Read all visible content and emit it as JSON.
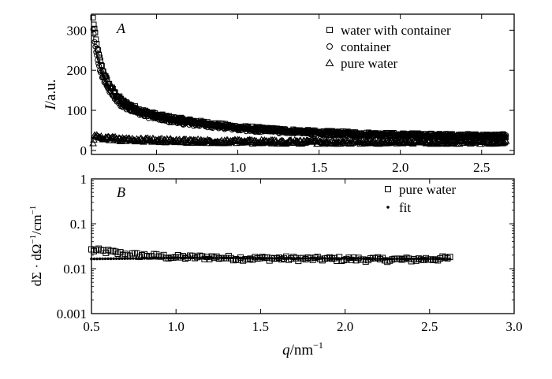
{
  "chart_data": [
    {
      "panel_label": "A",
      "type": "scatter",
      "ylabel_var": "I",
      "ylabel_unit": "/a.u.",
      "xlim": [
        0.1,
        2.7
      ],
      "ylim": [
        -10,
        340
      ],
      "x_ticks": [
        "0.5",
        "1.0",
        "1.5",
        "2.0",
        "2.5"
      ],
      "x_tick_values": [
        0.5,
        1.0,
        1.5,
        2.0,
        2.5
      ],
      "y_ticks": [
        "0",
        "100",
        "200",
        "300"
      ],
      "y_tick_values": [
        0,
        100,
        200,
        300
      ],
      "legend_position": "top-right",
      "series": [
        {
          "name": "water with container",
          "marker": "square",
          "x": [
            0.11,
            0.12,
            0.13,
            0.15,
            0.17,
            0.2,
            0.25,
            0.3,
            0.4,
            0.5,
            0.6,
            0.8,
            1.0,
            1.2,
            1.5,
            1.8,
            2.0,
            2.3,
            2.6,
            2.65
          ],
          "y": [
            330,
            300,
            270,
            230,
            200,
            170,
            140,
            120,
            100,
            88,
            80,
            68,
            58,
            52,
            45,
            41,
            39,
            37,
            36,
            36
          ]
        },
        {
          "name": "container",
          "marker": "circle",
          "x": [
            0.11,
            0.12,
            0.13,
            0.15,
            0.17,
            0.2,
            0.25,
            0.3,
            0.4,
            0.5,
            0.6,
            0.8,
            1.0,
            1.2,
            1.5,
            1.8,
            2.0,
            2.3,
            2.6,
            2.65
          ],
          "y": [
            300,
            270,
            240,
            205,
            180,
            155,
            125,
            108,
            90,
            80,
            72,
            62,
            54,
            48,
            43,
            39,
            37,
            35,
            34,
            34
          ]
        },
        {
          "name": "pure water",
          "marker": "triangle",
          "x": [
            0.11,
            0.12,
            0.13,
            0.15,
            0.2,
            0.3,
            0.5,
            0.7,
            1.0,
            1.3,
            1.6,
            2.0,
            2.3,
            2.6,
            2.65
          ],
          "y": [
            15,
            40,
            35,
            33,
            30,
            27,
            25,
            23,
            22,
            21,
            21,
            21,
            21,
            21,
            21
          ]
        }
      ]
    },
    {
      "panel_label": "B",
      "type": "scatter",
      "ylabel_main": "dΣ · dΩ",
      "ylabel_mid": "/cm",
      "ylabel_exp": "−1",
      "xlabel_var": "q",
      "xlabel_unit": "/nm",
      "xlabel_exp": "−1",
      "y_scale": "log",
      "xlim": [
        0.5,
        3.0
      ],
      "ylim": [
        0.001,
        1
      ],
      "x_ticks": [
        "0.5",
        "1.0",
        "1.5",
        "2.0",
        "2.5",
        "3.0"
      ],
      "x_tick_values": [
        0.5,
        1.0,
        1.5,
        2.0,
        2.5,
        3.0
      ],
      "y_ticks": [
        "0.001",
        "0.01",
        "0.1",
        "1"
      ],
      "y_tick_values": [
        0.001,
        0.01,
        0.1,
        1
      ],
      "legend_position": "top-right",
      "series": [
        {
          "name": "pure water",
          "marker": "square",
          "x": [
            0.5,
            0.55,
            0.6,
            0.7,
            0.8,
            0.9,
            1.0,
            1.2,
            1.4,
            1.6,
            1.8,
            2.0,
            2.2,
            2.4,
            2.6,
            2.62
          ],
          "y": [
            0.026,
            0.025,
            0.024,
            0.021,
            0.02,
            0.019,
            0.018,
            0.018,
            0.017,
            0.017,
            0.0165,
            0.0165,
            0.016,
            0.016,
            0.017,
            0.017
          ]
        },
        {
          "name": "fit",
          "marker": "dot",
          "x": [
            0.5,
            0.8,
            1.0,
            1.2,
            1.5,
            1.8,
            2.0,
            2.3,
            2.62
          ],
          "y": [
            0.0165,
            0.017,
            0.0175,
            0.0175,
            0.017,
            0.017,
            0.0168,
            0.0165,
            0.0165
          ]
        }
      ]
    }
  ]
}
